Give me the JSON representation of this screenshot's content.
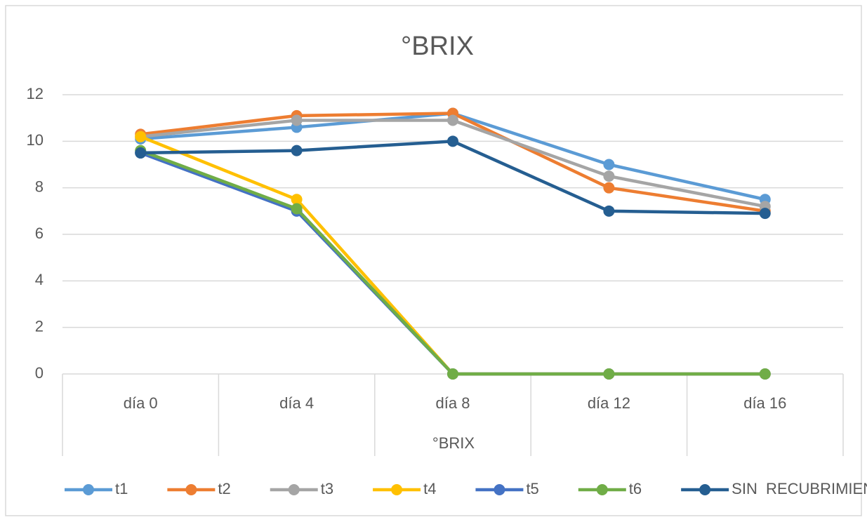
{
  "chart_data": {
    "type": "line",
    "title": "°BRIX",
    "x_label": "°BRIX",
    "categories": [
      "día 0",
      "día 4",
      "día 8",
      "día 12",
      "día 16"
    ],
    "series": [
      {
        "name": "t1",
        "color": "#5b9bd5",
        "values": [
          10.1,
          10.6,
          11.2,
          9.0,
          7.5
        ]
      },
      {
        "name": "t2",
        "color": "#ed7d31",
        "values": [
          10.3,
          11.1,
          11.2,
          8.0,
          7.0
        ]
      },
      {
        "name": "t3",
        "color": "#a5a5a5",
        "values": [
          10.2,
          10.9,
          10.9,
          8.5,
          7.2
        ]
      },
      {
        "name": "t4",
        "color": "#ffc000",
        "values": [
          10.2,
          7.5,
          0,
          0,
          0
        ]
      },
      {
        "name": "t5",
        "color": "#4472c4",
        "values": [
          9.5,
          7.0,
          0,
          0,
          0
        ]
      },
      {
        "name": "t6",
        "color": "#70ad47",
        "values": [
          9.6,
          7.1,
          0,
          0,
          0
        ]
      },
      {
        "name": "SIN  RECUBRIMIENTO",
        "color": "#255e91",
        "values": [
          9.5,
          9.6,
          10.0,
          7.0,
          6.9
        ]
      }
    ],
    "ylim": [
      0,
      12
    ],
    "yticks": [
      0,
      2,
      4,
      6,
      8,
      10,
      12
    ],
    "grid": true,
    "legend": "bottom"
  }
}
